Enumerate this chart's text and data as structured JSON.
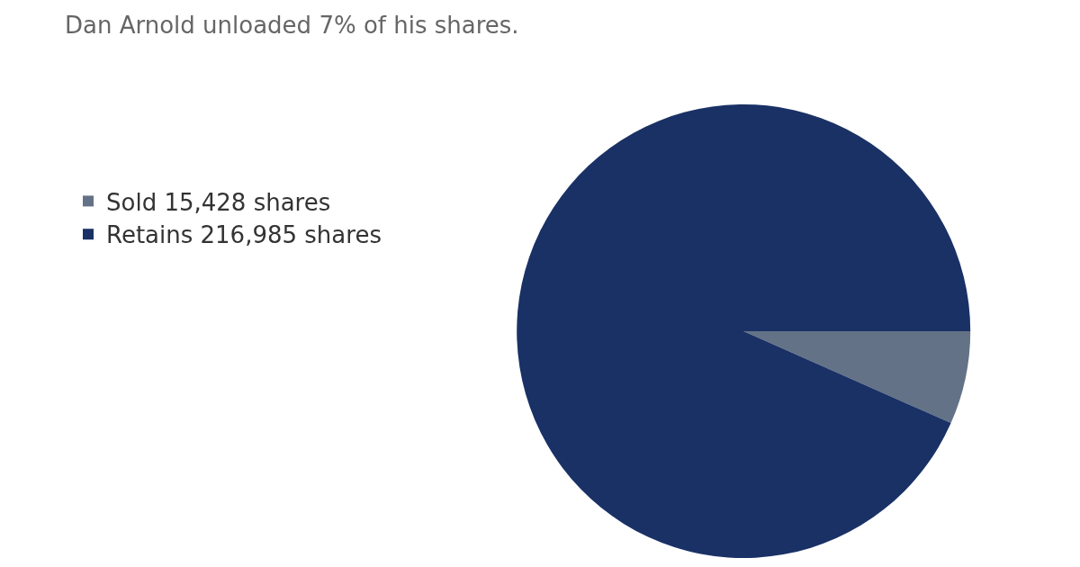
{
  "chart_data": {
    "type": "pie",
    "title": "Dan Arnold unloaded 7% of his shares.",
    "categories": [
      "Sold 15,428 shares",
      "Retains 216,985 shares"
    ],
    "values": [
      15428,
      216985
    ],
    "colors": [
      "#637286",
      "#1a3166"
    ],
    "legend": "left"
  }
}
